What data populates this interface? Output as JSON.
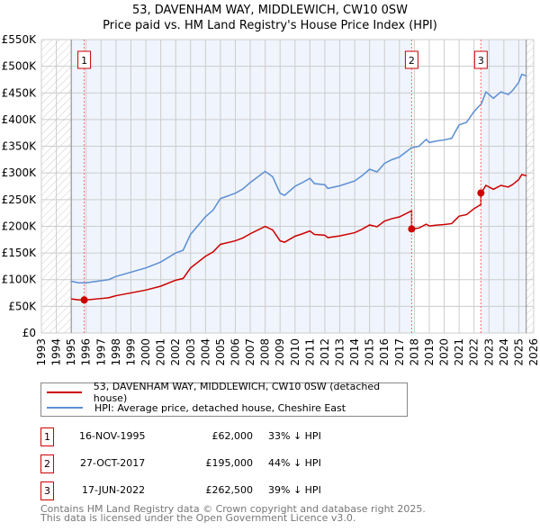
{
  "chart_data": {
    "type": "line",
    "title": "53, DAVENHAM WAY, MIDDLEWICH, CW10 0SW",
    "subtitle": "Price paid vs. HM Land Registry's House Price Index (HPI)",
    "xlim": [
      1993,
      2026
    ],
    "ylim": [
      0,
      550000
    ],
    "yticks": [
      "£0",
      "£50K",
      "£100K",
      "£150K",
      "£200K",
      "£250K",
      "£300K",
      "£350K",
      "£400K",
      "£450K",
      "£500K",
      "£550K"
    ],
    "xticks": [
      "1993",
      "1994",
      "1995",
      "1996",
      "1997",
      "1998",
      "1999",
      "2000",
      "2001",
      "2002",
      "2003",
      "2004",
      "2005",
      "2006",
      "2007",
      "2008",
      "2009",
      "2010",
      "2011",
      "2012",
      "2013",
      "2014",
      "2015",
      "2016",
      "2017",
      "2018",
      "2019",
      "2020",
      "2021",
      "2022",
      "2023",
      "2024",
      "2025",
      "2026"
    ],
    "data_range": [
      1995,
      2025.5
    ],
    "series": [
      {
        "name": "HPI: Average price, detached house, Cheshire East",
        "color": "#5b8fd4",
        "x": [
          1995,
          1995.5,
          1996,
          1997,
          1997.5,
          1998,
          1999,
          2000,
          2001,
          2002,
          2002.5,
          2003,
          2004,
          2004.5,
          2005,
          2006,
          2006.5,
          2007,
          2008,
          2008.5,
          2009,
          2009.3,
          2010,
          2010.5,
          2011,
          2011.3,
          2012,
          2012.2,
          2013,
          2014,
          2014.5,
          2015,
          2015.5,
          2016,
          2016.5,
          2017,
          2017.8,
          2018.3,
          2018.8,
          2019,
          2019.5,
          2020,
          2020.5,
          2021,
          2021.5,
          2022,
          2022.5,
          2022.8,
          2023.3,
          2023.8,
          2024.3,
          2024.6,
          2025,
          2025.2,
          2025.5
        ],
        "y": [
          97000,
          94000,
          94000,
          98000,
          100000,
          106000,
          114000,
          122000,
          133000,
          150000,
          155000,
          185000,
          218000,
          230000,
          252000,
          262000,
          270000,
          282000,
          303000,
          293000,
          262000,
          258000,
          275000,
          282000,
          290000,
          280000,
          278000,
          271000,
          276000,
          285000,
          295000,
          307000,
          302000,
          318000,
          325000,
          330000,
          347000,
          350000,
          363000,
          357000,
          360000,
          362000,
          365000,
          390000,
          395000,
          415000,
          430000,
          452000,
          440000,
          452000,
          447000,
          455000,
          470000,
          485000,
          482000
        ]
      },
      {
        "name": "53, DAVENHAM WAY, MIDDLEWICH, CW10 0SW (detached house)",
        "color": "#cc0000"
      }
    ],
    "sales": [
      {
        "label": "1",
        "date": "16-NOV-1995",
        "x": 1995.87,
        "price": "£62,000",
        "value": 62000,
        "hpi": "33% ↓ HPI"
      },
      {
        "label": "2",
        "date": "27-OCT-2017",
        "x": 2017.82,
        "price": "£195,000",
        "value": 195000,
        "hpi": "44% ↓ HPI"
      },
      {
        "label": "3",
        "date": "17-JUN-2022",
        "x": 2022.46,
        "price": "£262,500",
        "value": 262500,
        "hpi": "39% ↓ HPI"
      }
    ],
    "legend": [
      "53, DAVENHAM WAY, MIDDLEWICH, CW10 0SW (detached house)",
      "HPI: Average price, detached house, Cheshire East"
    ],
    "legend_placement": "bottom"
  },
  "footer": [
    "Contains HM Land Registry data © Crown copyright and database right 2025.",
    "This data is licensed under the Open Government Licence v3.0."
  ]
}
